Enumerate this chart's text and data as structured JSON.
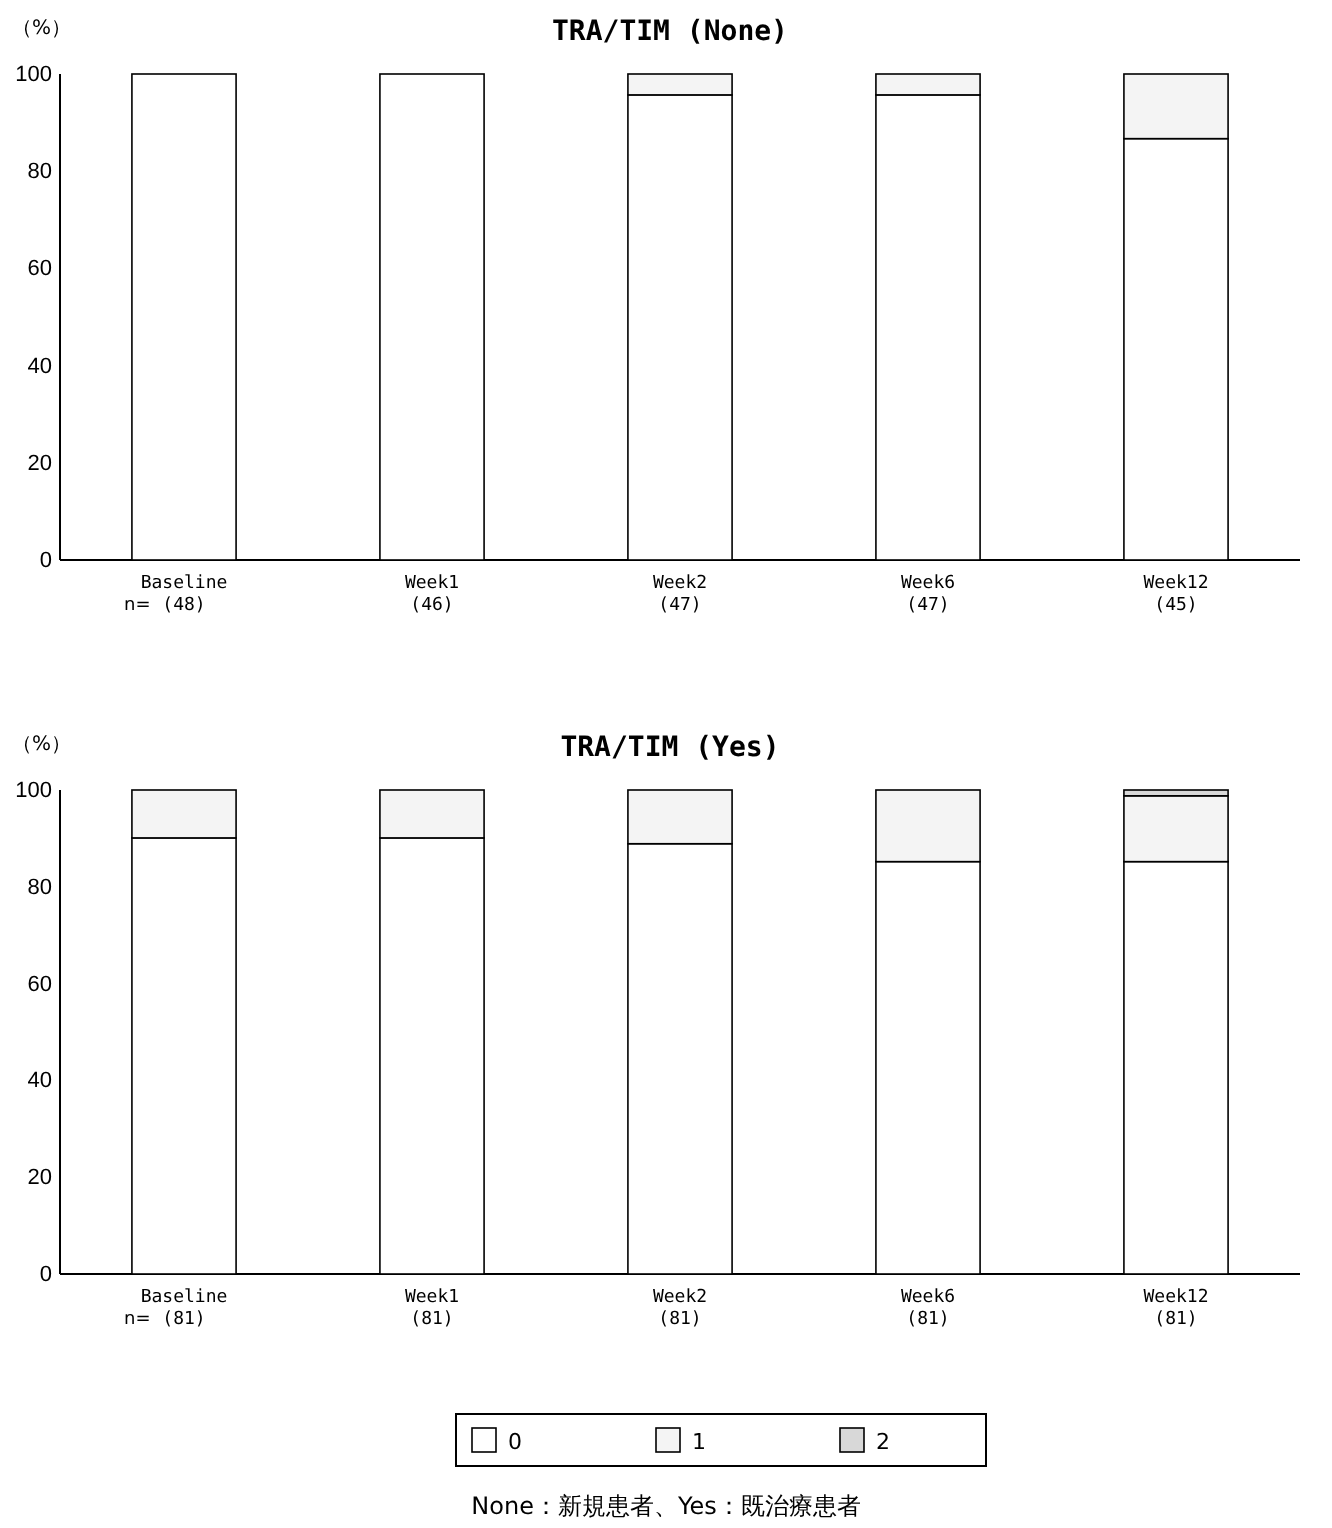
{
  "chart_data": [
    {
      "type": "bar",
      "title": "TRA/TIM (None)",
      "ylabel": "（%）",
      "categories": [
        "Baseline\n(48)",
        "Week1\n(46)",
        "Week2\n(47)",
        "Week6\n(47)",
        "Week12\n(45)"
      ],
      "stacked": true,
      "ylim": [
        0,
        100
      ],
      "yticks": [
        0,
        20,
        40,
        60,
        80,
        100
      ],
      "annotations": [
        "n="
      ],
      "series": [
        {
          "color": "#ffffff",
          "values": [
            100,
            100,
            95.7,
            95.7,
            86.7
          ]
        },
        {
          "color": "#f4f4f4",
          "values": [
            0,
            0,
            4.3,
            4.3,
            13.3
          ]
        }
      ]
    },
    {
      "type": "bar",
      "title": "TRA/TIM (Yes)",
      "ylabel": "（%）",
      "categories": [
        "Baseline\n(81)",
        "Week1\n(81)",
        "Week2\n(81)",
        "Week6\n(81)",
        "Week12\n(81)"
      ],
      "stacked": true,
      "ylim": [
        0,
        100
      ],
      "yticks": [
        0,
        20,
        40,
        60,
        80,
        100
      ],
      "legend": "bottom",
      "annotations": [
        "n=",
        "None：新規患者、Yes：既治療患者"
      ],
      "series": [
        {
          "name": "0",
          "color": "#ffffff",
          "values": [
            90.1,
            90.1,
            88.9,
            85.2,
            85.2
          ]
        },
        {
          "name": "1",
          "color": "#f4f4f4",
          "values": [
            9.9,
            9.9,
            11.1,
            14.8,
            13.6
          ]
        },
        {
          "name": "2",
          "color": "#d8d8d8",
          "values": [
            0,
            0,
            0,
            0,
            1.2
          ]
        }
      ]
    }
  ]
}
